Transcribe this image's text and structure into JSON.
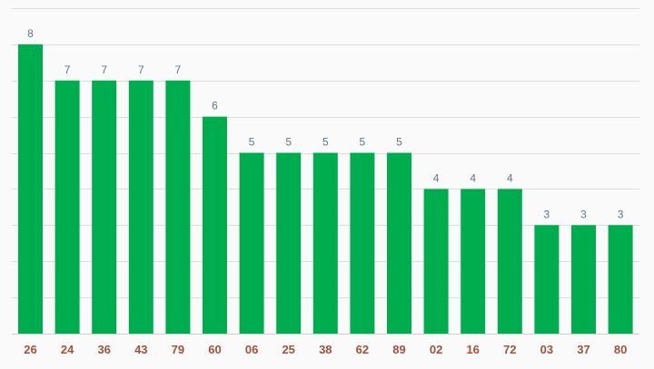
{
  "chart_data": {
    "type": "bar",
    "categories": [
      "26",
      "24",
      "36",
      "43",
      "79",
      "60",
      "06",
      "25",
      "38",
      "62",
      "89",
      "02",
      "16",
      "72",
      "03",
      "37",
      "80"
    ],
    "values": [
      8,
      7,
      7,
      7,
      7,
      6,
      5,
      5,
      5,
      5,
      5,
      4,
      4,
      4,
      3,
      3,
      3
    ],
    "ylim": [
      0,
      9
    ],
    "grid": true,
    "colors": {
      "bar": "#00ad4e",
      "value_label": "#5a7a8a",
      "category_label": "#a0523a",
      "grid": "#dcdcdc",
      "background": "#fafafa"
    }
  }
}
